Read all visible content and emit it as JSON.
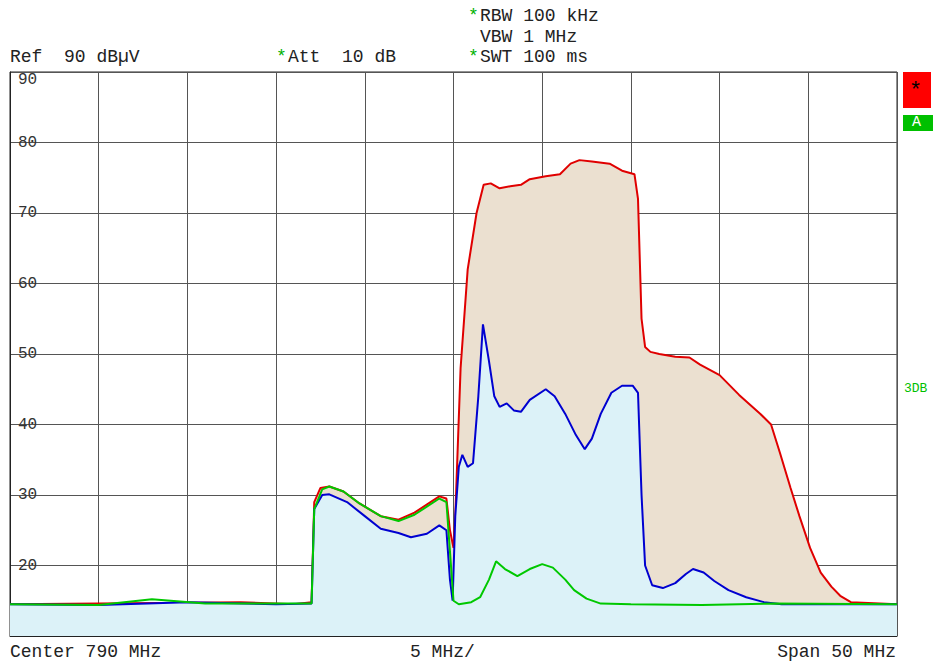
{
  "chart_data": {
    "type": "line",
    "annotations": {
      "ref": {
        "text": "Ref  90 dBµV"
      },
      "att": {
        "text": "Att  10 dB",
        "mark": "*"
      },
      "rbw": {
        "text": "RBW 100 kHz",
        "mark": "*"
      },
      "vbw": {
        "text": "VBW 1 MHz"
      },
      "swt": {
        "text": "SWT 100 ms",
        "mark": "*"
      },
      "center": {
        "text": "Center 790 MHz"
      },
      "div": {
        "text": "5 MHz/"
      },
      "span": {
        "text": "Span 50 MHz"
      },
      "status": {
        "text": "*"
      },
      "trace": {
        "text": "A"
      },
      "display_line": {
        "text": "3DB"
      }
    },
    "xlim": [
      765,
      815
    ],
    "xticks": [
      765,
      770,
      775,
      780,
      785,
      790,
      795,
      800,
      805,
      810,
      815
    ],
    "ylim": [
      10,
      90
    ],
    "yticks": [
      10,
      20,
      30,
      40,
      50,
      60,
      70,
      80,
      90
    ],
    "grid": true,
    "tick_labels": "y",
    "series": [
      {
        "color": "#e00000",
        "x": [
          765,
          770,
          775,
          778,
          781,
          782.0,
          782.15,
          782.5,
          783.0,
          783.8,
          784.7,
          785.9,
          786.9,
          787.8,
          789.2,
          789.6,
          789.8,
          790.0,
          790.1,
          790.4,
          790.8,
          791.3,
          791.7,
          792.1,
          792.6,
          793.2,
          793.8,
          794.3,
          795.2,
          796.0,
          796.6,
          797.1,
          797.8,
          798.8,
          799.5,
          800.2,
          800.4,
          800.6,
          800.8,
          801.1,
          801.6,
          802.5,
          803.3,
          803.9,
          805.0,
          806.1,
          807.3,
          807.9,
          808.4,
          809.0,
          809.5,
          810.1,
          810.7,
          811.3,
          811.8,
          812.4,
          815
        ],
        "values": [
          14.5,
          14.6,
          14.7,
          14.8,
          14.5,
          14.8,
          29,
          31,
          31.2,
          30.5,
          28.8,
          27,
          26.5,
          27.5,
          29.8,
          29.5,
          25,
          22.5,
          27,
          48,
          62,
          70,
          74,
          74.2,
          73.5,
          73.8,
          74,
          74.8,
          75.2,
          75.5,
          77,
          77.5,
          77.3,
          77,
          76,
          75.5,
          72,
          55,
          51,
          50.3,
          50,
          49.6,
          49.5,
          48.5,
          47,
          44.2,
          41.5,
          40,
          36,
          31,
          27,
          22.5,
          19,
          17,
          15.7,
          14.8,
          14.5
        ]
      },
      {
        "color": "#0000d0",
        "x": [
          765,
          770,
          775,
          780,
          782.0,
          782.15,
          782.6,
          783.0,
          784.0,
          785.0,
          785.9,
          786.9,
          787.6,
          788.5,
          789.2,
          789.6,
          789.8,
          789.95,
          790.1,
          790.3,
          790.5,
          790.8,
          791.1,
          791.4,
          791.66,
          792.0,
          792.3,
          792.6,
          793.0,
          793.4,
          793.8,
          794.3,
          795.2,
          795.7,
          796.3,
          796.9,
          797.4,
          797.8,
          798.3,
          798.9,
          799.5,
          800.1,
          800.4,
          800.6,
          800.8,
          801.2,
          801.8,
          802.5,
          803.1,
          803.5,
          804.1,
          804.7,
          805.5,
          806.5,
          807.5,
          808.5,
          815
        ],
        "values": [
          14.5,
          14.4,
          14.8,
          14.5,
          14.6,
          28,
          30,
          30.1,
          29,
          27,
          25.2,
          24.6,
          24,
          24.5,
          25.7,
          25,
          18,
          15,
          27,
          34,
          35.7,
          34,
          34.5,
          44,
          54.2,
          49,
          44,
          42.5,
          43,
          42,
          41.8,
          43.5,
          45,
          44,
          41.5,
          38.5,
          36.5,
          38,
          41.5,
          44.5,
          45.5,
          45.5,
          44.5,
          30,
          20,
          17.2,
          16.8,
          17.5,
          18.8,
          19.5,
          19,
          17.8,
          16.5,
          15.5,
          14.8,
          14.5,
          14.5
        ]
      },
      {
        "color": "#00c800",
        "x": [
          765,
          770,
          773,
          776,
          782.0,
          782.15,
          782.6,
          783.0,
          783.8,
          784.7,
          785.9,
          786.9,
          787.8,
          789.2,
          789.6,
          789.8,
          790.0,
          790.3,
          791.0,
          791.5,
          792.0,
          792.4,
          792.9,
          793.6,
          794.3,
          795.0,
          795.6,
          796.3,
          796.8,
          797.5,
          798.3,
          800,
          804,
          808,
          815
        ],
        "values": [
          14.5,
          14.4,
          15.2,
          14.6,
          14.6,
          28,
          30.8,
          31.2,
          30.5,
          28.8,
          27,
          26.3,
          27.2,
          29.5,
          29,
          22,
          15,
          14.5,
          14.8,
          15.5,
          18,
          20.6,
          19.5,
          18.5,
          19.5,
          20.2,
          19.7,
          18,
          16.5,
          15.3,
          14.6,
          14.5,
          14.4,
          14.6,
          14.5
        ]
      }
    ]
  }
}
